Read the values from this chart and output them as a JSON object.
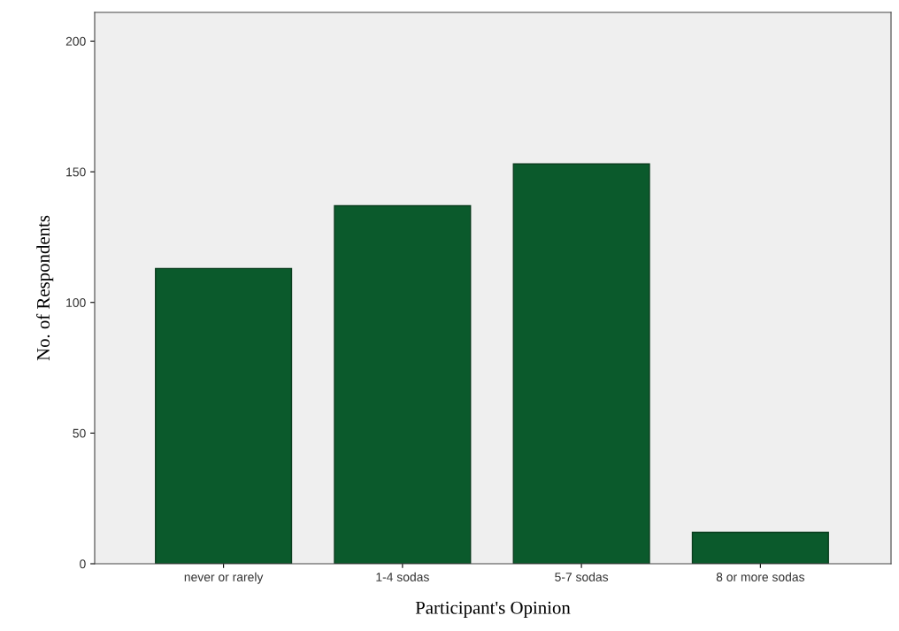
{
  "chart_data": {
    "type": "bar",
    "xlabel": "Participant's Opinion",
    "ylabel": "No. of Respondents",
    "categories": [
      "never or rarely",
      "1-4 sodas",
      "5-7 sodas",
      "8 or more sodas"
    ],
    "values": [
      113,
      137,
      153,
      12
    ],
    "color": "#0b5a2c",
    "ylim": [
      0,
      211
    ],
    "yticks": [
      0,
      50,
      100,
      150,
      200
    ],
    "grid": false,
    "legend": false
  }
}
